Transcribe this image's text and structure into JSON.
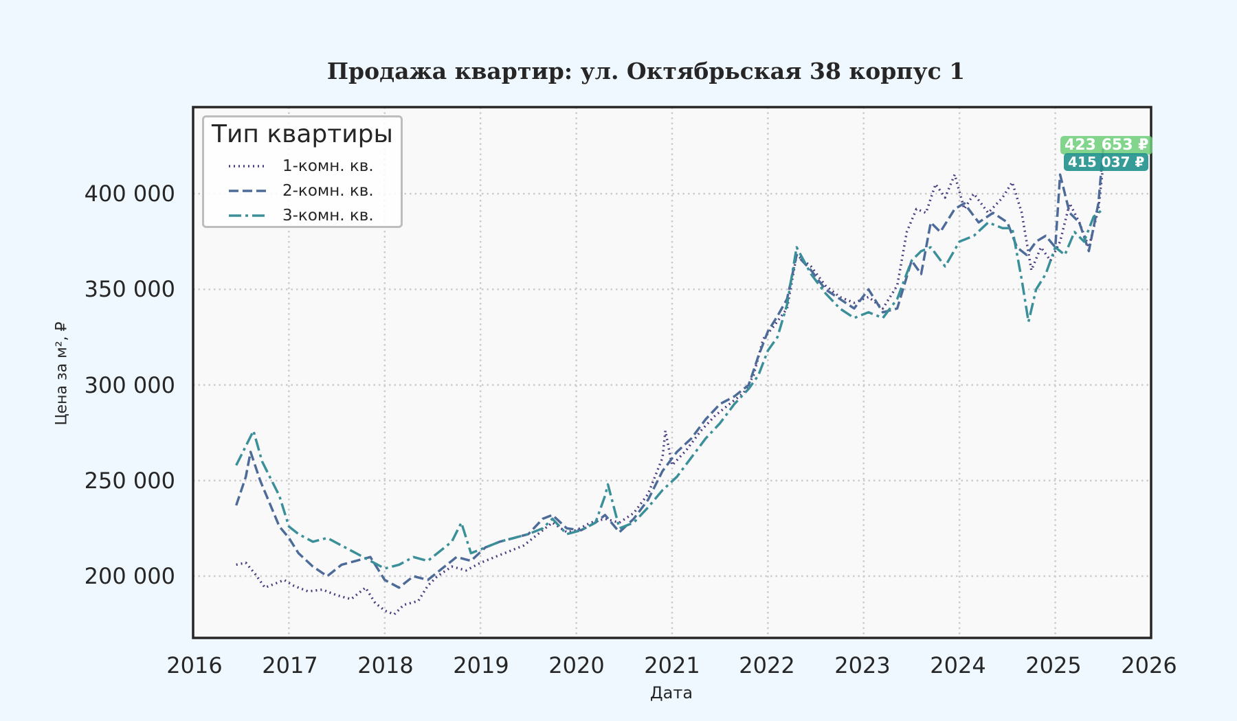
{
  "chart_data": {
    "type": "line",
    "title": "Продажа квартир: ул. Октябрьская 38 корпус 1",
    "xlabel": "Дата",
    "ylabel": "Цена за м², ₽",
    "x_ticks": [
      "2016",
      "2017",
      "2018",
      "2019",
      "2020",
      "2021",
      "2022",
      "2023",
      "2024",
      "2025",
      "2026"
    ],
    "y_ticks": [
      "200 000",
      "250 000",
      "300 000",
      "350 000",
      "400 000"
    ],
    "y_tick_values": [
      200000,
      250000,
      300000,
      350000,
      400000
    ],
    "xlim": [
      2016.0,
      2026.0
    ],
    "ylim": [
      167700,
      445300
    ],
    "grid": true,
    "legend_position": "upper left",
    "legend_title": "Тип квартиры",
    "series": [
      {
        "name": "1-комн. кв.",
        "color": "#4b3b80",
        "style": "dotted",
        "x": [
          2016.45,
          2016.55,
          2016.65,
          2016.75,
          2016.85,
          2016.95,
          2017.05,
          2017.2,
          2017.35,
          2017.5,
          2017.65,
          2017.8,
          2017.9,
          2018.0,
          2018.1,
          2018.2,
          2018.35,
          2018.45,
          2018.55,
          2018.7,
          2018.85,
          2019.0,
          2019.15,
          2019.3,
          2019.45,
          2019.6,
          2019.75,
          2019.9,
          2020.0,
          2020.15,
          2020.3,
          2020.45,
          2020.6,
          2020.75,
          2020.9,
          2020.93,
          2021.0,
          2021.15,
          2021.3,
          2021.45,
          2021.6,
          2021.75,
          2021.85,
          2021.95,
          2022.05,
          2022.2,
          2022.3,
          2022.45,
          2022.6,
          2022.75,
          2022.9,
          2023.05,
          2023.2,
          2023.35,
          2023.45,
          2023.55,
          2023.65,
          2023.75,
          2023.85,
          2023.95,
          2024.05,
          2024.15,
          2024.3,
          2024.45,
          2024.55,
          2024.65,
          2024.75,
          2024.85,
          2024.95,
          2025.05,
          2025.15,
          2025.25,
          2025.35,
          2025.45,
          2025.5
        ],
        "values": [
          206000,
          207000,
          201000,
          194000,
          196000,
          198000,
          195000,
          192000,
          193000,
          190000,
          188000,
          194000,
          186000,
          182000,
          180000,
          185000,
          187000,
          195000,
          200000,
          205000,
          203000,
          207000,
          210000,
          213000,
          216000,
          222000,
          228000,
          223000,
          224000,
          228000,
          230000,
          228000,
          233000,
          243000,
          262000,
          276000,
          258000,
          266000,
          276000,
          284000,
          290000,
          296000,
          305000,
          324000,
          330000,
          340000,
          368000,
          362000,
          352000,
          346000,
          343000,
          346000,
          340000,
          352000,
          380000,
          392000,
          390000,
          405000,
          398000,
          410000,
          392000,
          400000,
          390000,
          398000,
          406000,
          390000,
          360000,
          372000,
          365000,
          375000,
          395000,
          385000,
          372000,
          392000,
          415037
        ]
      },
      {
        "name": "2-комн. кв.",
        "color": "#4d6b98",
        "style": "dashed",
        "x": [
          2016.45,
          2016.55,
          2016.6,
          2016.7,
          2016.8,
          2016.9,
          2017.0,
          2017.1,
          2017.25,
          2017.4,
          2017.55,
          2017.7,
          2017.85,
          2018.0,
          2018.15,
          2018.3,
          2018.45,
          2018.6,
          2018.75,
          2018.9,
          2019.05,
          2019.2,
          2019.35,
          2019.5,
          2019.65,
          2019.75,
          2019.9,
          2020.05,
          2020.2,
          2020.3,
          2020.45,
          2020.6,
          2020.75,
          2020.9,
          2021.05,
          2021.2,
          2021.35,
          2021.5,
          2021.65,
          2021.8,
          2021.9,
          2022.0,
          2022.1,
          2022.2,
          2022.3,
          2022.45,
          2022.6,
          2022.75,
          2022.9,
          2023.05,
          2023.2,
          2023.35,
          2023.5,
          2023.6,
          2023.7,
          2023.8,
          2023.95,
          2024.05,
          2024.2,
          2024.35,
          2024.5,
          2024.6,
          2024.7,
          2024.8,
          2024.9,
          2025.0,
          2025.05,
          2025.15,
          2025.25,
          2025.35,
          2025.45,
          2025.5
        ],
        "values": [
          237000,
          252000,
          265000,
          250000,
          238000,
          226000,
          220000,
          212000,
          205000,
          200000,
          206000,
          208000,
          210000,
          198000,
          194000,
          200000,
          198000,
          204000,
          210000,
          208000,
          215000,
          218000,
          220000,
          222000,
          230000,
          232000,
          225000,
          224000,
          228000,
          232000,
          223000,
          230000,
          240000,
          255000,
          265000,
          272000,
          282000,
          290000,
          294000,
          300000,
          315000,
          328000,
          336000,
          345000,
          368000,
          360000,
          350000,
          345000,
          340000,
          350000,
          338000,
          340000,
          365000,
          358000,
          385000,
          380000,
          392000,
          395000,
          385000,
          390000,
          385000,
          372000,
          368000,
          375000,
          378000,
          372000,
          410000,
          390000,
          385000,
          370000,
          395000,
          423653
        ]
      },
      {
        "name": "3-комн. кв.",
        "color": "#3a8f99",
        "style": "dashdot",
        "x": [
          2016.45,
          2016.55,
          2016.63,
          2016.72,
          2016.8,
          2016.9,
          2017.0,
          2017.1,
          2017.25,
          2017.4,
          2017.55,
          2017.7,
          2017.85,
          2018.0,
          2018.15,
          2018.3,
          2018.45,
          2018.55,
          2018.7,
          2018.8,
          2018.9,
          2019.05,
          2019.2,
          2019.35,
          2019.5,
          2019.65,
          2019.75,
          2019.9,
          2020.05,
          2020.2,
          2020.3,
          2020.33,
          2020.45,
          2020.6,
          2020.75,
          2020.9,
          2021.05,
          2021.2,
          2021.35,
          2021.5,
          2021.65,
          2021.8,
          2021.9,
          2022.0,
          2022.1,
          2022.2,
          2022.3,
          2022.45,
          2022.6,
          2022.75,
          2022.9,
          2023.05,
          2023.2,
          2023.35,
          2023.5,
          2023.6,
          2023.7,
          2023.85,
          2024.0,
          2024.15,
          2024.3,
          2024.45,
          2024.55,
          2024.65,
          2024.72,
          2024.8,
          2024.9,
          2025.0,
          2025.1,
          2025.2,
          2025.3,
          2025.4,
          2025.5
        ],
        "values": [
          258000,
          268000,
          276000,
          260000,
          252000,
          242000,
          226000,
          222000,
          218000,
          220000,
          216000,
          212000,
          208000,
          204000,
          206000,
          210000,
          208000,
          212000,
          218000,
          228000,
          212000,
          215000,
          218000,
          220000,
          222000,
          225000,
          230000,
          222000,
          224000,
          228000,
          242000,
          248000,
          225000,
          228000,
          236000,
          245000,
          252000,
          262000,
          272000,
          280000,
          290000,
          298000,
          305000,
          318000,
          325000,
          342000,
          372000,
          358000,
          348000,
          340000,
          335000,
          338000,
          335000,
          345000,
          365000,
          370000,
          372000,
          362000,
          375000,
          378000,
          385000,
          382000,
          382000,
          355000,
          333000,
          350000,
          358000,
          372000,
          368000,
          380000,
          375000,
          388000,
          392000
        ]
      }
    ],
    "annotations": [
      {
        "label": "423 653 ₽",
        "series": "2-комн. кв.",
        "bg": "#6fcf7a"
      },
      {
        "label": "415 037 ₽",
        "series": "1-комн. кв.",
        "bg": "#21918c"
      }
    ]
  },
  "colors": {
    "background": "#f0f8ff",
    "plot_background": "#f9f9f9",
    "grid": "#cccccc",
    "frame": "#262626"
  }
}
